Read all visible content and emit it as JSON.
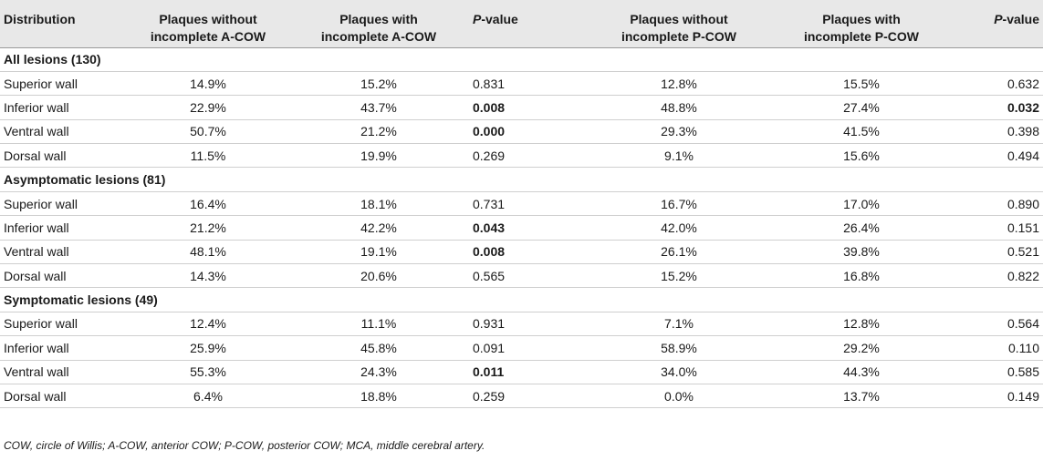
{
  "table": {
    "headers": [
      {
        "line1": "Distribution",
        "line2": ""
      },
      {
        "line1": "Plaques without",
        "line2": "incomplete A-COW"
      },
      {
        "line1": "Plaques with",
        "line2": "incomplete A-COW"
      },
      {
        "line1": "P-value",
        "line2": ""
      },
      {
        "line1": "Plaques without",
        "line2": "incomplete P-COW"
      },
      {
        "line1": "Plaques with",
        "line2": "incomplete P-COW"
      },
      {
        "line1": "P-value",
        "line2": ""
      }
    ],
    "pvalue_prefix": "P",
    "pvalue_suffix": "-value",
    "sections": [
      {
        "title": "All lesions (130)",
        "rows": [
          {
            "label": "Superior wall",
            "a_without": "14.9%",
            "a_with": "15.2%",
            "p_a": "0.831",
            "p_a_bold": false,
            "p_without": "12.8%",
            "p_with": "15.5%",
            "p_p": "0.632",
            "p_p_bold": false
          },
          {
            "label": "Inferior wall",
            "a_without": "22.9%",
            "a_with": "43.7%",
            "p_a": "0.008",
            "p_a_bold": true,
            "p_without": "48.8%",
            "p_with": "27.4%",
            "p_p": "0.032",
            "p_p_bold": true
          },
          {
            "label": "Ventral wall",
            "a_without": "50.7%",
            "a_with": "21.2%",
            "p_a": "0.000",
            "p_a_bold": true,
            "p_without": "29.3%",
            "p_with": "41.5%",
            "p_p": "0.398",
            "p_p_bold": false
          },
          {
            "label": "Dorsal wall",
            "a_without": "11.5%",
            "a_with": "19.9%",
            "p_a": "0.269",
            "p_a_bold": false,
            "p_without": "9.1%",
            "p_with": "15.6%",
            "p_p": "0.494",
            "p_p_bold": false
          }
        ]
      },
      {
        "title": "Asymptomatic lesions (81)",
        "rows": [
          {
            "label": "Superior wall",
            "a_without": "16.4%",
            "a_with": "18.1%",
            "p_a": "0.731",
            "p_a_bold": false,
            "p_without": "16.7%",
            "p_with": "17.0%",
            "p_p": "0.890",
            "p_p_bold": false
          },
          {
            "label": "Inferior wall",
            "a_without": "21.2%",
            "a_with": "42.2%",
            "p_a": "0.043",
            "p_a_bold": true,
            "p_without": "42.0%",
            "p_with": "26.4%",
            "p_p": "0.151",
            "p_p_bold": false
          },
          {
            "label": "Ventral wall",
            "a_without": "48.1%",
            "a_with": "19.1%",
            "p_a": "0.008",
            "p_a_bold": true,
            "p_without": "26.1%",
            "p_with": "39.8%",
            "p_p": "0.521",
            "p_p_bold": false
          },
          {
            "label": "Dorsal wall",
            "a_without": "14.3%",
            "a_with": "20.6%",
            "p_a": "0.565",
            "p_a_bold": false,
            "p_without": "15.2%",
            "p_with": "16.8%",
            "p_p": "0.822",
            "p_p_bold": false
          }
        ]
      },
      {
        "title": "Symptomatic lesions (49)",
        "rows": [
          {
            "label": "Superior wall",
            "a_without": "12.4%",
            "a_with": "11.1%",
            "p_a": "0.931",
            "p_a_bold": false,
            "p_without": "7.1%",
            "p_with": "12.8%",
            "p_p": "0.564",
            "p_p_bold": false
          },
          {
            "label": "Inferior wall",
            "a_without": "25.9%",
            "a_with": "45.8%",
            "p_a": "0.091",
            "p_a_bold": false,
            "p_without": "58.9%",
            "p_with": "29.2%",
            "p_p": "0.110",
            "p_p_bold": false
          },
          {
            "label": "Ventral wall",
            "a_without": "55.3%",
            "a_with": "24.3%",
            "p_a": "0.011",
            "p_a_bold": true,
            "p_without": "34.0%",
            "p_with": "44.3%",
            "p_p": "0.585",
            "p_p_bold": false
          },
          {
            "label": "Dorsal wall",
            "a_without": "6.4%",
            "a_with": "18.8%",
            "p_a": "0.259",
            "p_a_bold": false,
            "p_without": "0.0%",
            "p_with": "13.7%",
            "p_p": "0.149",
            "p_p_bold": false
          }
        ]
      }
    ]
  },
  "footnote": "COW, circle of Willis; A-COW, anterior COW; P-COW, posterior COW; MCA, middle cerebral artery."
}
